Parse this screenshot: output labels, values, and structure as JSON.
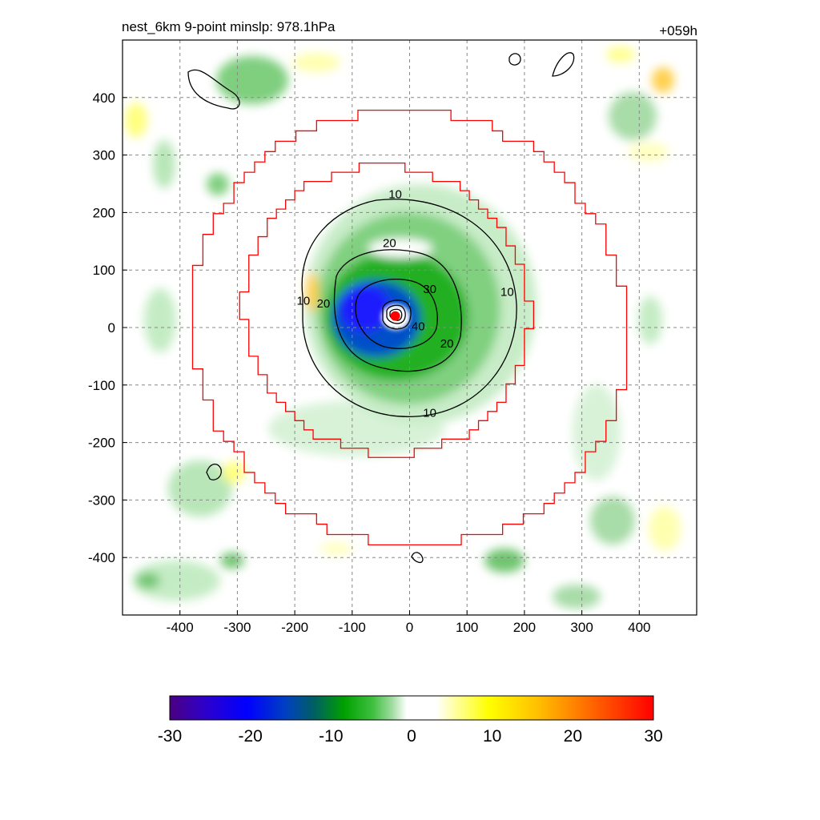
{
  "header": {
    "title": "nest_6km  9-point minslp: 978.1hPa",
    "time_label": "+059h"
  },
  "chart_data": {
    "type": "heatmap",
    "title": "nest_6km  9-point minslp: 978.1hPa",
    "time_label": "+059h",
    "xlabel": "",
    "ylabel": "",
    "xlim": [
      -500,
      500
    ],
    "ylim": [
      -500,
      500
    ],
    "x_ticks": [
      -400,
      -300,
      -200,
      -100,
      0,
      100,
      200,
      300,
      400
    ],
    "y_ticks": [
      400,
      300,
      200,
      100,
      0,
      -100,
      -200,
      -300,
      -400
    ],
    "x_tick_labels": [
      "-400",
      "-300",
      "-200",
      "-100",
      "0",
      "100",
      "200",
      "300",
      "400"
    ],
    "y_tick_labels": [
      "400",
      "300",
      "200",
      "100",
      "0",
      "-100",
      "-200",
      "-300",
      "-400"
    ],
    "grid": true,
    "colorbar": {
      "min": -30,
      "max": 30,
      "ticks": [
        -30,
        -20,
        -10,
        0,
        10,
        20,
        30
      ],
      "tick_labels": [
        "-30",
        "-20",
        "-10",
        "0",
        "10",
        "20",
        "30"
      ],
      "placement": "bottom"
    },
    "contours": {
      "levels": [
        10,
        20,
        30,
        40
      ],
      "labels": [
        {
          "text": "10",
          "x": -25,
          "y": 225
        },
        {
          "text": "20",
          "x": -35,
          "y": 140
        },
        {
          "text": "30",
          "x": 35,
          "y": 60
        },
        {
          "text": "40",
          "x": 15,
          "y": -5
        },
        {
          "text": "20",
          "x": 65,
          "y": -35
        },
        {
          "text": "10",
          "x": 170,
          "y": 55
        },
        {
          "text": "10",
          "x": 35,
          "y": -155
        },
        {
          "text": "10",
          "x": -185,
          "y": 40
        },
        {
          "text": "20",
          "x": -150,
          "y": 35
        }
      ]
    },
    "storm_center": {
      "x": -25,
      "y": 20,
      "color": "#ff0000"
    },
    "inner_domain_radius": 250,
    "outer_domain_radius": 380,
    "domain_outline_color": "#ff0000"
  },
  "colors": {
    "frame": "#000000",
    "grid": "#888888",
    "domain": "#ff0000",
    "contour": "#000000"
  }
}
